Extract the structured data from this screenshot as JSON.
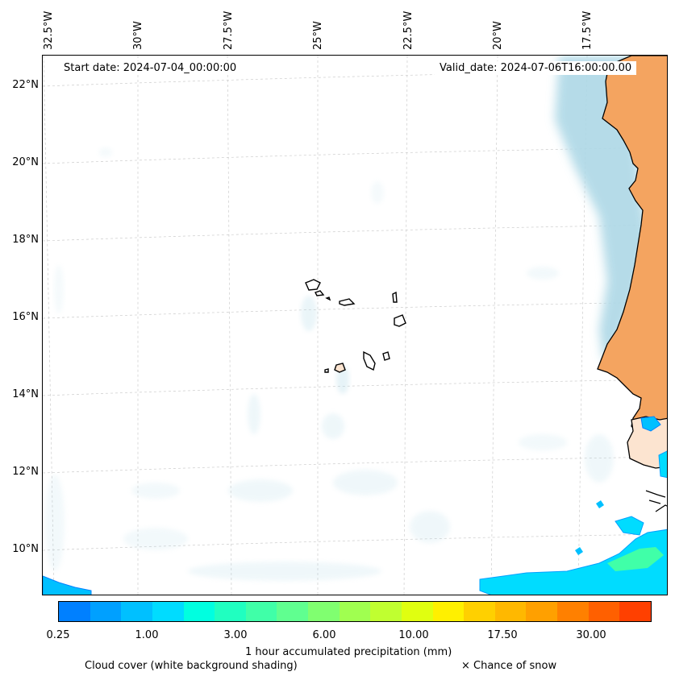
{
  "map": {
    "start_label": "Start date: 2024-07-04_00:00:00",
    "valid_label": "Valid_date: 2024-07-06T16:00:00.00",
    "lon_labels": [
      "32.5°W",
      "30°W",
      "27.5°W",
      "25°W",
      "22.5°W",
      "20°W",
      "17.5°W"
    ],
    "lat_labels": [
      "22°N",
      "20°N",
      "18°N",
      "16°N",
      "14°N",
      "12°N",
      "10°N"
    ],
    "land_color": "#f4a460",
    "cloud_color": "#add8e6",
    "gridline_color": "#cccccc"
  },
  "colorbar": {
    "colors": [
      "#0080ff",
      "#00a0ff",
      "#00c0ff",
      "#00dcff",
      "#00ffe0",
      "#20ffc0",
      "#40ffa8",
      "#60ff90",
      "#80ff70",
      "#a0ff50",
      "#c0ff30",
      "#e0ff10",
      "#fff000",
      "#ffd000",
      "#ffb800",
      "#ffa000",
      "#ff8000",
      "#ff6000",
      "#ff4000"
    ],
    "ticks": [
      "0.25",
      "1.00",
      "3.00",
      "6.00",
      "10.00",
      "17.50",
      "30.00"
    ],
    "label": "1 hour accumulated precipitation (mm)"
  },
  "legend": {
    "cloud_text": "Cloud cover (white background shading)",
    "snow_text": "× Chance of snow"
  }
}
